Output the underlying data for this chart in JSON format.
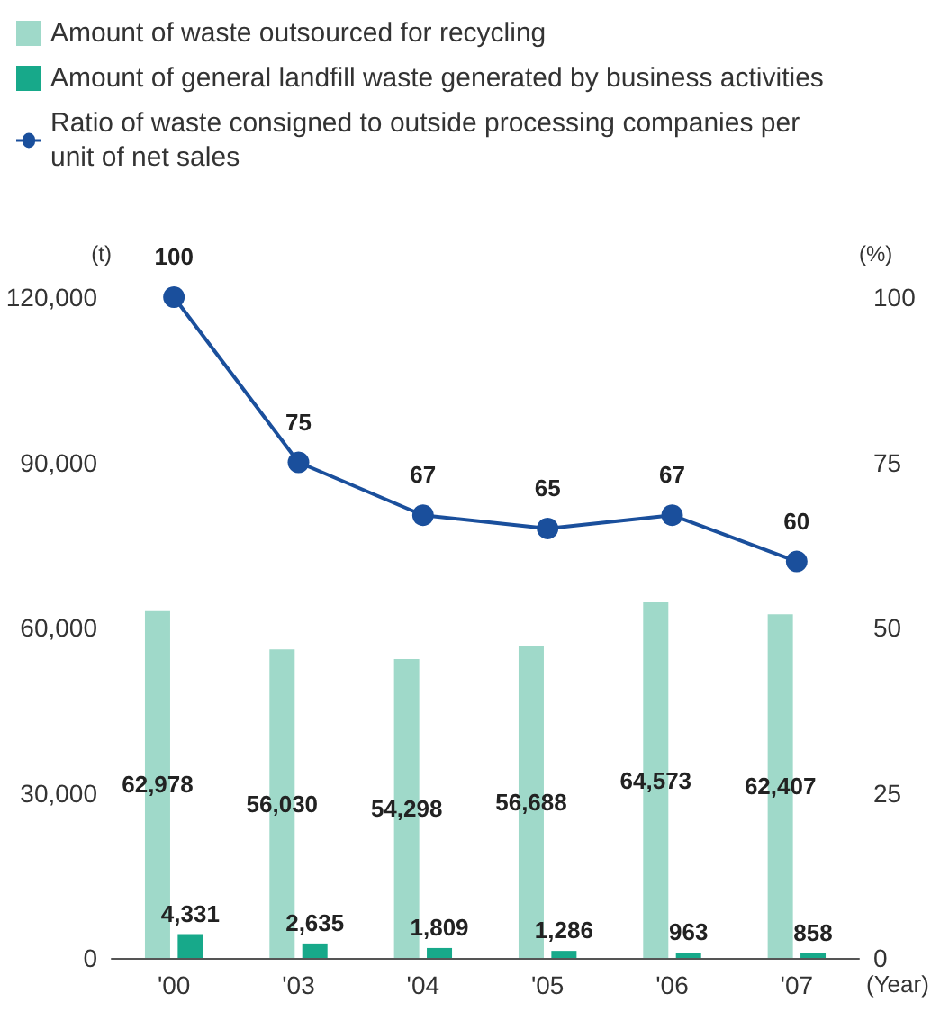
{
  "chart_data": {
    "type": "bar",
    "categories": [
      "'00",
      "'03",
      "'04",
      "'05",
      "'06",
      "'07"
    ],
    "xlabel": "(Year)",
    "ylabel": "(t)",
    "y2label": "(%)",
    "series": [
      {
        "name": "Amount of waste outsourced for recycling",
        "color": "#9fd9c9",
        "values": [
          62978,
          56030,
          54298,
          56688,
          64573,
          62407
        ],
        "value_labels": [
          "62,978",
          "56,030",
          "54,298",
          "56,688",
          "64,573",
          "62,407"
        ]
      },
      {
        "name": "Amount of general landfill waste generated by business activities",
        "color": "#17a98a",
        "values": [
          4331,
          2635,
          1809,
          1286,
          963,
          858
        ],
        "value_labels": [
          "4,331",
          "2,635",
          "1,809",
          "1,286",
          "963",
          "858"
        ]
      },
      {
        "name": "Ratio of waste consigned to outside processing companies per unit of net sales",
        "type": "line",
        "axis": "y2",
        "color": "#1a4f9c",
        "values": [
          100,
          75,
          67,
          65,
          67,
          60
        ]
      }
    ],
    "ylim": [
      0,
      120000
    ],
    "yticks": [
      0,
      {
        "value": 30000,
        "label": "30,000"
      },
      {
        "value": 60000,
        "label": "60,000"
      },
      {
        "value": 90000,
        "label": "90,000"
      },
      {
        "value": 120000,
        "label": "120,000"
      }
    ],
    "y2lim": [
      0,
      100
    ],
    "y2ticks": [
      0,
      25,
      50,
      75,
      100
    ],
    "data_labels": true,
    "legend": "top",
    "grid": false,
    "marker": "circle",
    "line_style": "solid"
  }
}
